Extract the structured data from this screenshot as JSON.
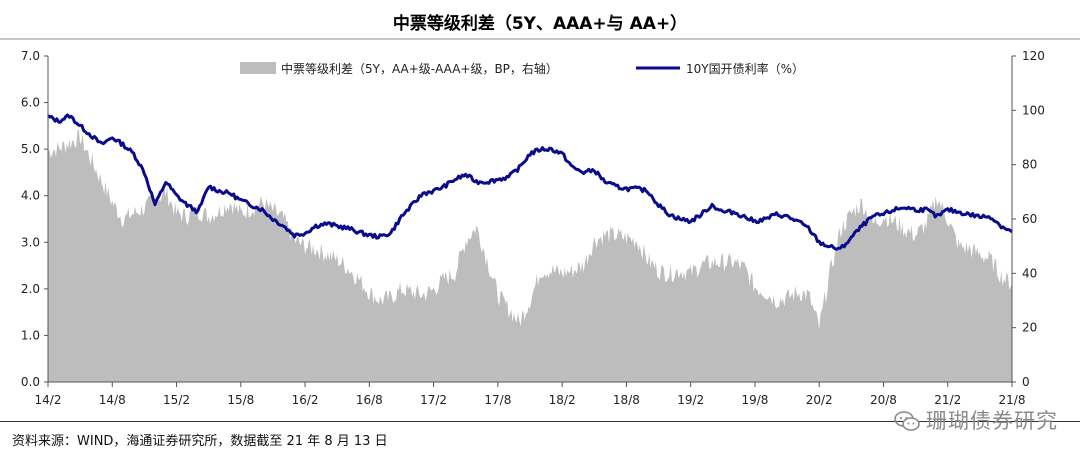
{
  "title": "中票等级利差（5Y、AAA+与 AA+）",
  "source": "资料来源：WIND，海通证券研究所，数据截至 21 年 8 月 13 日",
  "watermark": "珊瑚债券研究",
  "colors": {
    "area": "#bdbdbd",
    "line": "#0a0a8c",
    "grid": "#cccccc"
  },
  "chart_data": {
    "type": "area+line",
    "legend_position": "top-center",
    "x_ticks": [
      "14/2",
      "14/8",
      "15/2",
      "15/8",
      "16/2",
      "16/8",
      "17/2",
      "17/8",
      "18/2",
      "18/8",
      "19/2",
      "19/8",
      "20/2",
      "20/8",
      "21/2",
      "21/8"
    ],
    "x_range": [
      "2014-02",
      "2021-08"
    ],
    "y_left": {
      "ticks": [
        "0.0",
        "1.0",
        "2.0",
        "3.0",
        "4.0",
        "5.0",
        "6.0",
        "7.0"
      ],
      "range": [
        0,
        7
      ]
    },
    "y_right": {
      "ticks": [
        "0",
        "20",
        "40",
        "60",
        "80",
        "100",
        "120"
      ],
      "range": [
        0,
        120
      ]
    },
    "series": [
      {
        "name": "中票等级利差（5Y，AA+级-AAA+级，BP，右轴）",
        "type": "area",
        "axis": "right",
        "points": [
          [
            "2014-02",
            85
          ],
          [
            "2014-03",
            86
          ],
          [
            "2014-04",
            88
          ],
          [
            "2014-05",
            90
          ],
          [
            "2014-06",
            82
          ],
          [
            "2014-07",
            74
          ],
          [
            "2014-08",
            66
          ],
          [
            "2014-09",
            60
          ],
          [
            "2014-10",
            62
          ],
          [
            "2014-11",
            64
          ],
          [
            "2014-12",
            67
          ],
          [
            "2015-01",
            70
          ],
          [
            "2015-02",
            62
          ],
          [
            "2015-03",
            61
          ],
          [
            "2015-04",
            63
          ],
          [
            "2015-05",
            61
          ],
          [
            "2015-06",
            63
          ],
          [
            "2015-07",
            66
          ],
          [
            "2015-08",
            62
          ],
          [
            "2015-09",
            64
          ],
          [
            "2015-10",
            66
          ],
          [
            "2015-11",
            63
          ],
          [
            "2015-12",
            60
          ],
          [
            "2016-01",
            52
          ],
          [
            "2016-02",
            50
          ],
          [
            "2016-03",
            49
          ],
          [
            "2016-04",
            47
          ],
          [
            "2016-05",
            45
          ],
          [
            "2016-06",
            42
          ],
          [
            "2016-07",
            38
          ],
          [
            "2016-08",
            33
          ],
          [
            "2016-09",
            30
          ],
          [
            "2016-10",
            31
          ],
          [
            "2016-11",
            34
          ],
          [
            "2016-12",
            33
          ],
          [
            "2017-01",
            32
          ],
          [
            "2017-02",
            34
          ],
          [
            "2017-03",
            38
          ],
          [
            "2017-04",
            40
          ],
          [
            "2017-05",
            52
          ],
          [
            "2017-06",
            57
          ],
          [
            "2017-07",
            45
          ],
          [
            "2017-08",
            32
          ],
          [
            "2017-09",
            27
          ],
          [
            "2017-10",
            22
          ],
          [
            "2017-11",
            30
          ],
          [
            "2017-12",
            41
          ],
          [
            "2018-01",
            41
          ],
          [
            "2018-02",
            40
          ],
          [
            "2018-03",
            41
          ],
          [
            "2018-04",
            43
          ],
          [
            "2018-05",
            52
          ],
          [
            "2018-06",
            54
          ],
          [
            "2018-07",
            54
          ],
          [
            "2018-08",
            53
          ],
          [
            "2018-09",
            52
          ],
          [
            "2018-10",
            45
          ],
          [
            "2018-11",
            41
          ],
          [
            "2018-12",
            40
          ],
          [
            "2019-01",
            41
          ],
          [
            "2019-02",
            40
          ],
          [
            "2019-03",
            43
          ],
          [
            "2019-04",
            44
          ],
          [
            "2019-05",
            44
          ],
          [
            "2019-06",
            44
          ],
          [
            "2019-07",
            42
          ],
          [
            "2019-08",
            35
          ],
          [
            "2019-09",
            33
          ],
          [
            "2019-10",
            30
          ],
          [
            "2019-11",
            31
          ],
          [
            "2019-12",
            33
          ],
          [
            "2020-01",
            32
          ],
          [
            "2020-02",
            20
          ],
          [
            "2020-03",
            40
          ],
          [
            "2020-04",
            56
          ],
          [
            "2020-05",
            62
          ],
          [
            "2020-06",
            66
          ],
          [
            "2020-07",
            58
          ],
          [
            "2020-08",
            61
          ],
          [
            "2020-09",
            59
          ],
          [
            "2020-10",
            56
          ],
          [
            "2020-11",
            54
          ],
          [
            "2020-12",
            58
          ],
          [
            "2021-01",
            68
          ],
          [
            "2021-02",
            60
          ],
          [
            "2021-03",
            50
          ],
          [
            "2021-04",
            49
          ],
          [
            "2021-05",
            47
          ],
          [
            "2021-06",
            45
          ],
          [
            "2021-07",
            39
          ],
          [
            "2021-08",
            36
          ]
        ]
      },
      {
        "name": "10Y国开债利率（%）",
        "type": "line",
        "axis": "left",
        "points": [
          [
            "2014-02",
            5.7
          ],
          [
            "2014-03",
            5.6
          ],
          [
            "2014-04",
            5.72
          ],
          [
            "2014-05",
            5.5
          ],
          [
            "2014-06",
            5.3
          ],
          [
            "2014-07",
            5.1
          ],
          [
            "2014-08",
            5.25
          ],
          [
            "2014-09",
            5.1
          ],
          [
            "2014-10",
            4.9
          ],
          [
            "2014-11",
            4.5
          ],
          [
            "2014-12",
            3.8
          ],
          [
            "2015-01",
            4.3
          ],
          [
            "2015-02",
            4.0
          ],
          [
            "2015-03",
            3.8
          ],
          [
            "2015-04",
            3.65
          ],
          [
            "2015-05",
            4.2
          ],
          [
            "2015-06",
            4.1
          ],
          [
            "2015-07",
            4.05
          ],
          [
            "2015-08",
            3.9
          ],
          [
            "2015-09",
            3.8
          ],
          [
            "2015-10",
            3.7
          ],
          [
            "2015-11",
            3.5
          ],
          [
            "2015-12",
            3.35
          ],
          [
            "2016-01",
            3.15
          ],
          [
            "2016-02",
            3.2
          ],
          [
            "2016-03",
            3.35
          ],
          [
            "2016-04",
            3.4
          ],
          [
            "2016-05",
            3.35
          ],
          [
            "2016-06",
            3.3
          ],
          [
            "2016-07",
            3.22
          ],
          [
            "2016-08",
            3.15
          ],
          [
            "2016-09",
            3.12
          ],
          [
            "2016-10",
            3.2
          ],
          [
            "2016-11",
            3.55
          ],
          [
            "2016-12",
            3.8
          ],
          [
            "2017-01",
            4.05
          ],
          [
            "2017-02",
            4.1
          ],
          [
            "2017-03",
            4.2
          ],
          [
            "2017-04",
            4.35
          ],
          [
            "2017-05",
            4.45
          ],
          [
            "2017-06",
            4.3
          ],
          [
            "2017-07",
            4.3
          ],
          [
            "2017-08",
            4.35
          ],
          [
            "2017-09",
            4.4
          ],
          [
            "2017-10",
            4.6
          ],
          [
            "2017-11",
            4.9
          ],
          [
            "2017-12",
            5.0
          ],
          [
            "2018-01",
            5.0
          ],
          [
            "2018-02",
            4.9
          ],
          [
            "2018-03",
            4.6
          ],
          [
            "2018-04",
            4.5
          ],
          [
            "2018-05",
            4.55
          ],
          [
            "2018-06",
            4.3
          ],
          [
            "2018-07",
            4.2
          ],
          [
            "2018-08",
            4.15
          ],
          [
            "2018-09",
            4.15
          ],
          [
            "2018-10",
            4.1
          ],
          [
            "2018-11",
            3.8
          ],
          [
            "2018-12",
            3.6
          ],
          [
            "2019-01",
            3.5
          ],
          [
            "2019-02",
            3.45
          ],
          [
            "2019-03",
            3.6
          ],
          [
            "2019-04",
            3.8
          ],
          [
            "2019-05",
            3.65
          ],
          [
            "2019-06",
            3.65
          ],
          [
            "2019-07",
            3.55
          ],
          [
            "2019-08",
            3.45
          ],
          [
            "2019-09",
            3.5
          ],
          [
            "2019-10",
            3.6
          ],
          [
            "2019-11",
            3.55
          ],
          [
            "2019-12",
            3.45
          ],
          [
            "2020-01",
            3.3
          ],
          [
            "2020-02",
            3.0
          ],
          [
            "2020-03",
            2.9
          ],
          [
            "2020-04",
            2.85
          ],
          [
            "2020-05",
            3.1
          ],
          [
            "2020-06",
            3.35
          ],
          [
            "2020-07",
            3.55
          ],
          [
            "2020-08",
            3.6
          ],
          [
            "2020-09",
            3.7
          ],
          [
            "2020-10",
            3.75
          ],
          [
            "2020-11",
            3.7
          ],
          [
            "2020-12",
            3.7
          ],
          [
            "2021-01",
            3.55
          ],
          [
            "2021-02",
            3.7
          ],
          [
            "2021-03",
            3.65
          ],
          [
            "2021-04",
            3.6
          ],
          [
            "2021-05",
            3.55
          ],
          [
            "2021-06",
            3.55
          ],
          [
            "2021-07",
            3.35
          ],
          [
            "2021-08",
            3.22
          ]
        ]
      }
    ]
  }
}
